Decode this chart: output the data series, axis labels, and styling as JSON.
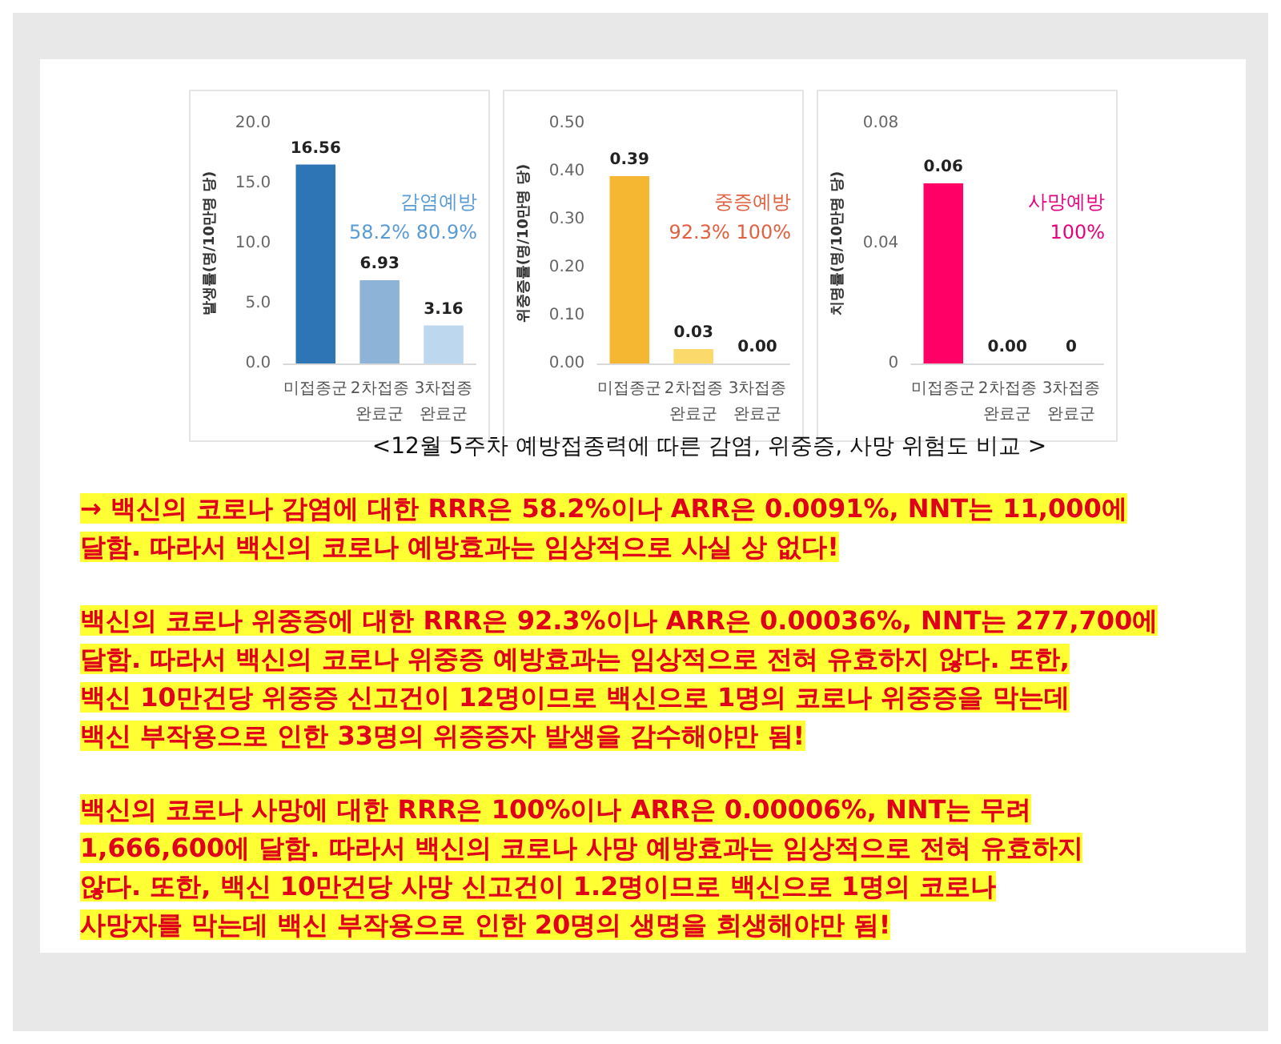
{
  "chart_data": [
    {
      "type": "bar",
      "ylabel": "발생률(명/10만명 당)",
      "categories": [
        "미접종군",
        "2차접종\n완료군",
        "3차접종\n완료군"
      ],
      "series": [
        {
          "values": [
            16.56,
            6.93,
            3.16
          ],
          "colors": [
            "#2e75b6",
            "#8db3d6",
            "#bdd7ee"
          ],
          "value_labels": [
            "16.56",
            "6.93",
            "3.16"
          ]
        }
      ],
      "ylim": [
        0,
        20
      ],
      "yticks": [
        {
          "value": 0,
          "label": "0.0"
        },
        {
          "value": 5,
          "label": "5.0"
        },
        {
          "value": 10,
          "label": "10.0"
        },
        {
          "value": 15,
          "label": "15.0"
        },
        {
          "value": 20,
          "label": "20.0"
        }
      ],
      "annotations": [
        "감염예방",
        "58.2% 80.9%"
      ]
    },
    {
      "type": "bar",
      "ylabel": "위중증률(명/10만명 당)",
      "categories": [
        "미접종군",
        "2차접종\n완료군",
        "3차접종\n완료군"
      ],
      "series": [
        {
          "values": [
            0.39,
            0.03,
            0
          ],
          "colors": [
            "#f5b731",
            "#fbd96a",
            "#fde9a8"
          ],
          "value_labels": [
            "0.39",
            "0.03",
            "0.00"
          ]
        }
      ],
      "ylim": [
        0,
        0.5
      ],
      "yticks": [
        {
          "value": 0,
          "label": "0.00"
        },
        {
          "value": 0.1,
          "label": "0.10"
        },
        {
          "value": 0.2,
          "label": "0.20"
        },
        {
          "value": 0.3,
          "label": "0.30"
        },
        {
          "value": 0.4,
          "label": "0.40"
        },
        {
          "value": 0.5,
          "label": "0.50"
        }
      ],
      "annotations": [
        "중증예방",
        "92.3% 100%"
      ]
    },
    {
      "type": "bar",
      "ylabel": "치명률(명/10만명 당)",
      "categories": [
        "미접종군",
        "2차접종\n완료군",
        "3차접종\n완료군"
      ],
      "series": [
        {
          "values": [
            0.06,
            0,
            0
          ],
          "colors": [
            "#ff0066",
            "#ff80b3",
            "#ffb3d1"
          ],
          "value_labels": [
            "0.06",
            "0.00",
            "0"
          ]
        }
      ],
      "ylim": [
        0,
        0.08
      ],
      "yticks": [
        0,
        0.04,
        0.08
      ],
      "annotations": [
        "사망예방",
        "100%"
      ]
    },
    {
      "type": "other",
      "annotations": [
        "<12월 5주차 예방접종력에 따른 감염, 위중증, 사망 위험도 비교 >",
        "→ 백신의 코로나 감염에 대한 RRR은 58.2%이나 ARR은 0.0091%, NNT는 11,000에\n달함. 따라서 백신의 코로나 예방효과는 임상적으로 사실 상 없다!",
        "백신의 코로나 위중증에 대한 RRR은 92.3%이나 ARR은 0.00036%, NNT는 277,700에\n달함. 따라서 백신의 코로나 위중증 예방효과는 임상적으로 전혀 유효하지 않다. 또한,\n백신 10만건당 위중증 신고건이 12명이므로 백신으로 1명의 코로나 위중증을 막는데\n백신 부작용으로 인한 33명의 위증증자 발생을 감수해야만 됨!",
        "백신의 코로나 사망에 대한 RRR은 100%이나 ARR은 0.00006%, NNT는 무려\n1,666,600에 달함.  따라서 백신의 코로나 사망 예방효과는 임상적으로 전혀 유효하지\n않다. 또한, 백신 10만건당 사망 신고건이 1.2명이므로 백신으로 1명의 코로나\n사망자를 막는데 백신 부작용으로 인한 20명의 생명을 희생해야만 됨!"
      ]
    }
  ]
}
